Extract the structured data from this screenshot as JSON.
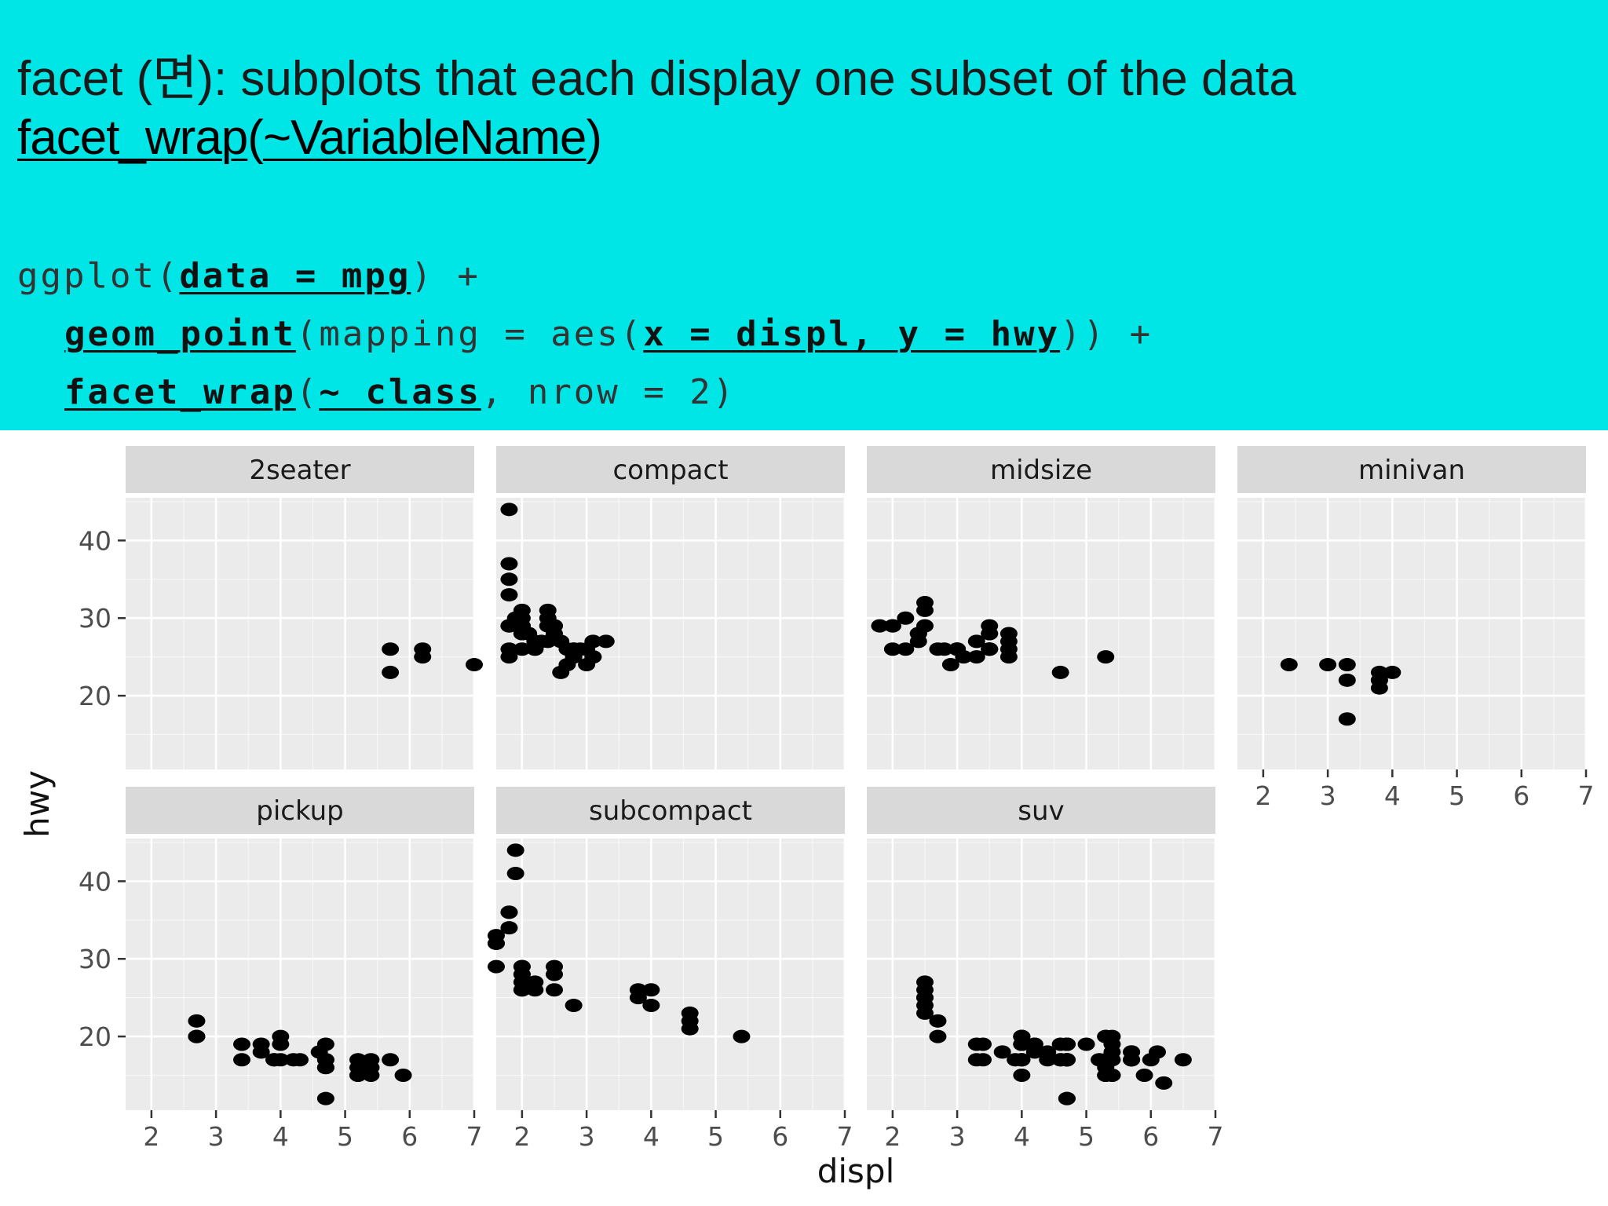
{
  "slide": {
    "title": "facet (면): subplots that each display one subset of the data",
    "subtitle_fn": "facet_wrap",
    "subtitle_paren_open": "(",
    "subtitle_arg": "~VariableName",
    "subtitle_paren_close": ")",
    "code": {
      "l1_a": "ggplot(",
      "l1_b": "data = mpg",
      "l1_c": ") +",
      "l2_a": "geom_point",
      "l2_b": "(mapping = aes(",
      "l2_c": "x = displ, y = hwy",
      "l2_d": ")) +",
      "l3_a": "facet_wrap",
      "l3_b": "(",
      "l3_c": "~ class",
      "l3_d": ", nrow = 2)"
    }
  },
  "colors": {
    "banner": "#00e6e6",
    "panel_bg": "#ebebeb",
    "strip_bg": "#d9d9d9",
    "grid": "#ffffff",
    "point": "#000000"
  },
  "chart_data": {
    "type": "scatter",
    "xlabel": "displ",
    "ylabel": "hwy",
    "xlim": [
      1.6,
      7.0
    ],
    "ylim": [
      10.5,
      45.5
    ],
    "x_ticks": [
      2,
      3,
      4,
      5,
      6,
      7
    ],
    "y_ticks": [
      20,
      30,
      40
    ],
    "nrow": 2,
    "grid": true,
    "facets": [
      {
        "name": "2seater",
        "points": [
          [
            5.7,
            26
          ],
          [
            5.7,
            23
          ],
          [
            6.2,
            26
          ],
          [
            6.2,
            25
          ],
          [
            7.0,
            24
          ]
        ]
      },
      {
        "name": "compact",
        "points": [
          [
            1.8,
            29
          ],
          [
            1.8,
            29
          ],
          [
            2.0,
            31
          ],
          [
            2.0,
            30
          ],
          [
            2.8,
            26
          ],
          [
            2.8,
            26
          ],
          [
            3.1,
            27
          ],
          [
            1.8,
            26
          ],
          [
            1.8,
            25
          ],
          [
            2.0,
            28
          ],
          [
            2.0,
            28
          ],
          [
            2.8,
            25
          ],
          [
            2.8,
            25
          ],
          [
            3.1,
            25
          ],
          [
            3.1,
            25
          ],
          [
            2.2,
            26
          ],
          [
            2.2,
            26
          ],
          [
            2.4,
            31
          ],
          [
            2.4,
            30
          ],
          [
            3.0,
            26
          ],
          [
            3.0,
            26
          ],
          [
            3.3,
            27
          ],
          [
            1.8,
            44
          ],
          [
            1.8,
            37
          ],
          [
            1.8,
            35
          ],
          [
            1.8,
            33
          ],
          [
            1.8,
            29
          ],
          [
            2.0,
            29
          ],
          [
            2.0,
            28
          ],
          [
            2.0,
            29
          ],
          [
            2.0,
            26
          ],
          [
            2.0,
            29
          ],
          [
            2.5,
            29
          ],
          [
            2.5,
            29
          ],
          [
            2.2,
            27
          ],
          [
            2.4,
            27
          ],
          [
            2.7,
            24
          ],
          [
            2.7,
            26
          ],
          [
            2.5,
            28
          ],
          [
            2.1,
            28
          ],
          [
            2.3,
            27
          ],
          [
            2.6,
            27
          ],
          [
            2.9,
            26
          ],
          [
            1.9,
            30
          ],
          [
            2.1,
            28
          ],
          [
            2.6,
            23
          ],
          [
            3.0,
            24
          ],
          [
            2.4,
            29
          ]
        ]
      },
      {
        "name": "midsize",
        "points": [
          [
            2.4,
            27
          ],
          [
            3.3,
            25
          ],
          [
            3.0,
            26
          ],
          [
            3.5,
            29
          ],
          [
            2.0,
            26
          ],
          [
            3.8,
            25
          ],
          [
            4.6,
            23
          ],
          [
            2.4,
            28
          ],
          [
            2.5,
            29
          ],
          [
            2.5,
            32
          ],
          [
            2.0,
            29
          ],
          [
            2.2,
            30
          ],
          [
            3.0,
            26
          ],
          [
            3.5,
            26
          ],
          [
            3.5,
            26
          ],
          [
            3.1,
            25
          ],
          [
            3.5,
            28
          ],
          [
            3.5,
            28
          ],
          [
            3.5,
            26
          ],
          [
            2.2,
            26
          ],
          [
            2.7,
            26
          ],
          [
            3.0,
            26
          ],
          [
            3.3,
            27
          ],
          [
            3.8,
            27
          ],
          [
            3.8,
            28
          ],
          [
            3.8,
            26
          ],
          [
            1.8,
            29
          ],
          [
            2.0,
            29
          ],
          [
            2.4,
            28
          ],
          [
            2.8,
            26
          ],
          [
            2.9,
            24
          ],
          [
            3.5,
            26
          ],
          [
            2.4,
            28
          ],
          [
            2.5,
            31
          ],
          [
            5.3,
            25
          ]
        ]
      },
      {
        "name": "minivan",
        "points": [
          [
            2.4,
            24
          ],
          [
            3.0,
            24
          ],
          [
            3.3,
            22
          ],
          [
            3.3,
            24
          ],
          [
            3.3,
            17
          ],
          [
            3.8,
            22
          ],
          [
            3.8,
            21
          ],
          [
            3.8,
            23
          ],
          [
            3.8,
            22
          ],
          [
            4.0,
            23
          ]
        ]
      },
      {
        "name": "pickup",
        "points": [
          [
            2.7,
            20
          ],
          [
            2.7,
            20
          ],
          [
            2.7,
            22
          ],
          [
            3.4,
            19
          ],
          [
            3.4,
            17
          ],
          [
            4.0,
            17
          ],
          [
            4.0,
            19
          ],
          [
            4.0,
            20
          ],
          [
            4.7,
            16
          ],
          [
            4.7,
            16
          ],
          [
            4.7,
            17
          ],
          [
            4.7,
            12
          ],
          [
            4.7,
            17
          ],
          [
            5.2,
            17
          ],
          [
            5.2,
            15
          ],
          [
            5.7,
            17
          ],
          [
            5.9,
            15
          ],
          [
            3.7,
            19
          ],
          [
            3.7,
            18
          ],
          [
            3.9,
            17
          ],
          [
            3.9,
            17
          ],
          [
            4.2,
            17
          ],
          [
            4.7,
            16
          ],
          [
            4.7,
            19
          ],
          [
            5.2,
            15
          ],
          [
            5.2,
            16
          ],
          [
            5.4,
            15
          ],
          [
            5.4,
            17
          ],
          [
            4.6,
            18
          ],
          [
            5.4,
            16
          ],
          [
            4.3,
            17
          ]
        ]
      },
      {
        "name": "subcompact",
        "points": [
          [
            3.8,
            26
          ],
          [
            3.8,
            25
          ],
          [
            4.0,
            26
          ],
          [
            4.0,
            24
          ],
          [
            4.6,
            21
          ],
          [
            4.6,
            22
          ],
          [
            4.6,
            23
          ],
          [
            5.4,
            20
          ],
          [
            1.6,
            33
          ],
          [
            1.6,
            32
          ],
          [
            1.6,
            32
          ],
          [
            1.6,
            29
          ],
          [
            1.8,
            34
          ],
          [
            1.8,
            36
          ],
          [
            1.8,
            36
          ],
          [
            2.0,
            29
          ],
          [
            2.0,
            26
          ],
          [
            2.0,
            27
          ],
          [
            2.0,
            29
          ],
          [
            2.0,
            26
          ],
          [
            2.0,
            28
          ],
          [
            2.2,
            27
          ],
          [
            2.5,
            28
          ],
          [
            2.5,
            29
          ],
          [
            2.5,
            26
          ],
          [
            2.8,
            24
          ],
          [
            1.9,
            44
          ],
          [
            1.9,
            41
          ],
          [
            2.2,
            26
          ],
          [
            2.0,
            28
          ]
        ]
      },
      {
        "name": "suv",
        "points": [
          [
            5.3,
            20
          ],
          [
            5.3,
            15
          ],
          [
            5.3,
            20
          ],
          [
            5.7,
            17
          ],
          [
            6.0,
            17
          ],
          [
            5.7,
            18
          ],
          [
            6.5,
            17
          ],
          [
            3.7,
            18
          ],
          [
            3.9,
            17
          ],
          [
            4.2,
            19
          ],
          [
            4.7,
            17
          ],
          [
            4.7,
            19
          ],
          [
            4.7,
            12
          ],
          [
            5.2,
            17
          ],
          [
            5.7,
            17
          ],
          [
            5.9,
            15
          ],
          [
            4.7,
            19
          ],
          [
            4.7,
            12
          ],
          [
            4.7,
            19
          ],
          [
            5.7,
            18
          ],
          [
            6.1,
            18
          ],
          [
            4.0,
            19
          ],
          [
            4.2,
            18
          ],
          [
            4.4,
            17
          ],
          [
            4.6,
            17
          ],
          [
            5.4,
            15
          ],
          [
            5.4,
            15
          ],
          [
            4.0,
            19
          ],
          [
            4.0,
            17
          ],
          [
            4.0,
            19
          ],
          [
            4.6,
            19
          ],
          [
            5.0,
            19
          ],
          [
            5.4,
            17
          ],
          [
            5.4,
            20
          ],
          [
            4.7,
            17
          ],
          [
            4.7,
            19
          ],
          [
            5.3,
            16
          ],
          [
            5.3,
            17
          ],
          [
            5.3,
            15
          ],
          [
            4.0,
            20
          ],
          [
            4.0,
            17
          ],
          [
            4.0,
            15
          ],
          [
            4.6,
            17
          ],
          [
            5.4,
            18
          ],
          [
            5.4,
            19
          ],
          [
            4.2,
            19
          ],
          [
            4.4,
            18
          ],
          [
            5.7,
            17
          ],
          [
            6.2,
            14
          ],
          [
            5.3,
            15
          ],
          [
            5.7,
            17
          ],
          [
            3.3,
            17
          ],
          [
            3.3,
            19
          ],
          [
            4.0,
            17
          ],
          [
            4.0,
            19
          ],
          [
            4.0,
            20
          ],
          [
            4.7,
            17
          ],
          [
            4.7,
            17
          ],
          [
            4.7,
            19
          ],
          [
            5.7,
            18
          ],
          [
            2.5,
            25
          ],
          [
            2.5,
            24
          ],
          [
            2.5,
            27
          ],
          [
            2.5,
            25
          ],
          [
            2.5,
            26
          ],
          [
            2.5,
            23
          ],
          [
            2.7,
            20
          ],
          [
            3.4,
            19
          ],
          [
            3.4,
            17
          ],
          [
            4.0,
            20
          ],
          [
            4.7,
            17
          ],
          [
            2.7,
            22
          ],
          [
            4.0,
            20
          ]
        ]
      }
    ]
  }
}
